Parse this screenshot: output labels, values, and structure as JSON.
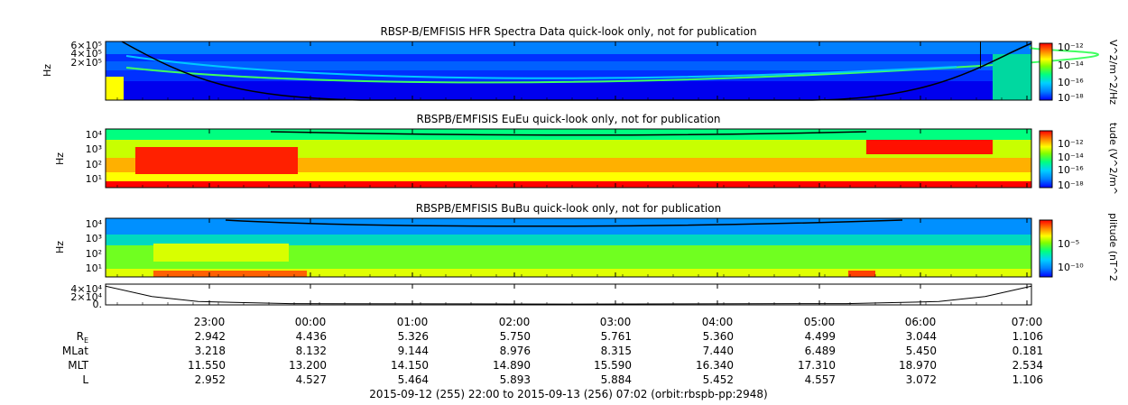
{
  "colors": {
    "spectrum": [
      "#0000ff",
      "#0080ff",
      "#00c8ff",
      "#00ff80",
      "#40ff00",
      "#c8ff00",
      "#ffff00",
      "#ff8000",
      "#ff0000"
    ],
    "trace": "#000000"
  },
  "chart_data": [
    {
      "type": "heatmap",
      "title": "RBSP-B/EMFISIS  HFR Spectra Data quick-look only, not for publication",
      "ylabel": "Hz",
      "ytick_labels": [
        "6×10⁵",
        "4×10⁵",
        "2×10⁵"
      ],
      "colorbar_label": "V^2/m^2/Hz",
      "colorbar_ticks": [
        "10⁻¹²",
        "10⁻¹⁴",
        "10⁻¹⁶",
        "10⁻¹⁸"
      ],
      "x_range": [
        "2015-09-12 22:00",
        "2015-09-13 07:02"
      ],
      "description_level": "broadband low-intensity (blue) with green emission bands"
    },
    {
      "type": "heatmap",
      "title": "RBSPB/EMFISIS  EuEu quick-look only, not for publication",
      "ylabel": "Hz",
      "ytick_labels": [
        "10⁴",
        "10³",
        "10²",
        "10¹"
      ],
      "colorbar_label": "tude (V^2/m^",
      "colorbar_ticks": [
        "10⁻¹²",
        "10⁻¹⁴",
        "10⁻¹⁶",
        "10⁻¹⁸"
      ],
      "x_range": [
        "2015-09-12 22:00",
        "2015-09-13 07:02"
      ]
    },
    {
      "type": "heatmap",
      "title": "RBSPB/EMFISIS  BuBu quick-look only, not for publication",
      "ylabel": "Hz",
      "ytick_labels": [
        "10⁴",
        "10³",
        "10²",
        "10¹"
      ],
      "colorbar_label": "plitude (nT^2",
      "colorbar_ticks": [
        "10⁻⁵",
        "10⁻¹⁰"
      ],
      "x_range": [
        "2015-09-12 22:00",
        "2015-09-13 07:02"
      ]
    },
    {
      "type": "line",
      "ytick_labels": [
        "4×10⁴",
        "2×10⁴",
        "0."
      ],
      "x": [
        0.0,
        0.05,
        0.1,
        0.2,
        0.5,
        0.8,
        0.9,
        0.95,
        1.0
      ],
      "y": [
        45000,
        20000,
        8000,
        3000,
        2000,
        3000,
        8000,
        20000,
        45000
      ]
    }
  ],
  "time_axis": {
    "tick_labels": [
      "23:00",
      "00:00",
      "01:00",
      "02:00",
      "03:00",
      "04:00",
      "05:00",
      "06:00",
      "07:00"
    ]
  },
  "ephemeris": {
    "rows": [
      {
        "label": "R",
        "sub": "E",
        "values": [
          "2.942",
          "4.436",
          "5.326",
          "5.750",
          "5.761",
          "5.360",
          "4.499",
          "3.044",
          "1.106"
        ]
      },
      {
        "label": "MLat",
        "sub": "",
        "values": [
          "3.218",
          "8.132",
          "9.144",
          "8.976",
          "8.315",
          "7.440",
          "6.489",
          "5.450",
          "0.181"
        ]
      },
      {
        "label": "MLT",
        "sub": "",
        "values": [
          "11.550",
          "13.200",
          "14.150",
          "14.890",
          "15.590",
          "16.340",
          "17.310",
          "18.970",
          "2.534"
        ]
      },
      {
        "label": "L",
        "sub": "",
        "values": [
          "2.952",
          "4.527",
          "5.464",
          "5.893",
          "5.884",
          "5.452",
          "4.557",
          "3.072",
          "1.106"
        ]
      }
    ]
  },
  "footer": "2015-09-12 (255) 22:00 to 2015-09-13 (256) 07:02 (orbit:rbspb-pp:2948)"
}
